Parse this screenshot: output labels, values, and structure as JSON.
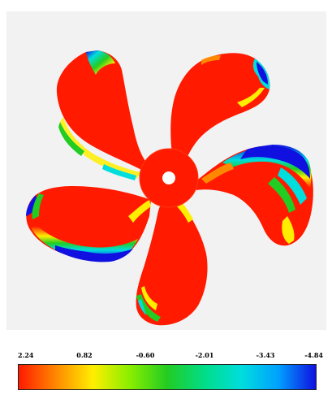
{
  "figure": {
    "subject": "propeller-pressure-contour"
  },
  "colors": {
    "background": "#ffffff",
    "plot_background": "#f2f2f2",
    "high": "#ff1a00",
    "orange": "#ff8800",
    "yellow": "#ffee00",
    "green": "#22cc22",
    "cyan": "#00dddd",
    "blue": "#1010e0"
  },
  "colorbar": {
    "ticks": [
      "2.24",
      "0.82",
      "-0.60",
      "-2.01",
      "-3.43",
      "-4.84"
    ],
    "gradient": [
      "#ff1a00",
      "#ff8800",
      "#ffee00",
      "#88ee00",
      "#22cc22",
      "#00dd88",
      "#00dddd",
      "#00a0ff",
      "#1010e0"
    ]
  }
}
